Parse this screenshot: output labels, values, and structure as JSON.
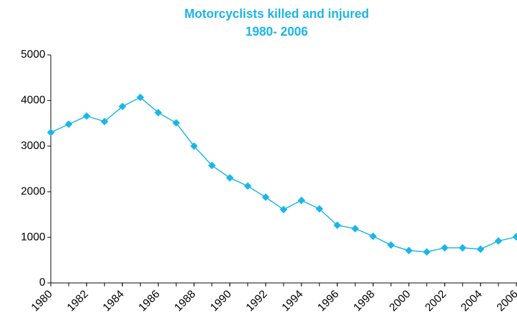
{
  "chart_data": {
    "type": "line",
    "title": [
      "Motorcyclists killed and injured",
      "1980- 2006"
    ],
    "x": [
      1980,
      1981,
      1982,
      1983,
      1984,
      1985,
      1986,
      1987,
      1988,
      1989,
      1990,
      1991,
      1992,
      1993,
      1994,
      1995,
      1996,
      1997,
      1998,
      1999,
      2000,
      2001,
      2002,
      2003,
      2004,
      2005,
      2006
    ],
    "series": [
      {
        "name": "Motorcyclists killed and injured",
        "color": "#1ab6ea",
        "values": [
          3300,
          3480,
          3660,
          3540,
          3870,
          4070,
          3735,
          3510,
          3000,
          2575,
          2305,
          2125,
          1880,
          1610,
          1810,
          1625,
          1265,
          1190,
          1025,
          830,
          710,
          680,
          770,
          770,
          740,
          920,
          1010
        ]
      }
    ],
    "xlim": [
      1980,
      2006
    ],
    "xticks": [
      1980,
      1982,
      1984,
      1986,
      1988,
      1990,
      1992,
      1994,
      1996,
      1998,
      2000,
      2002,
      2004,
      2006
    ],
    "ylim": [
      0,
      5000
    ],
    "yticks": [
      0,
      1000,
      2000,
      3000,
      4000,
      5000
    ],
    "grid": false,
    "legend": false
  }
}
